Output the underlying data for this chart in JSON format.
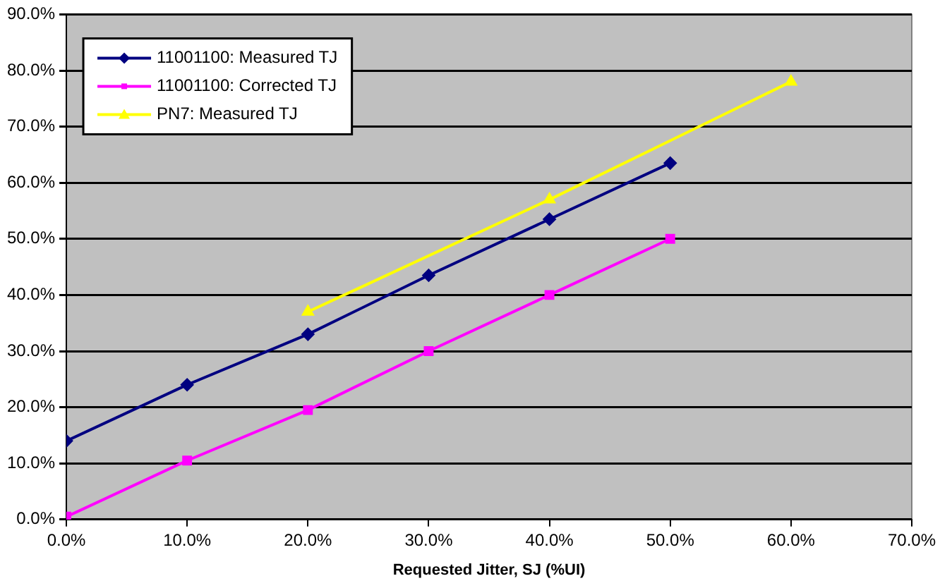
{
  "chart_data": {
    "type": "line",
    "xlabel": "Requested Jitter, SJ (%UI)",
    "xlim": [
      0,
      70
    ],
    "xticks": [
      {
        "value": 0,
        "label": "0.0%"
      },
      {
        "value": 10,
        "label": "10.0%"
      },
      {
        "value": 20,
        "label": "20.0%"
      },
      {
        "value": 30,
        "label": "30.0%"
      },
      {
        "value": 40,
        "label": "40.0%"
      },
      {
        "value": 50,
        "label": "50.0%"
      },
      {
        "value": 60,
        "label": "60.0%"
      },
      {
        "value": 70,
        "label": "70.0%"
      }
    ],
    "ylim": [
      0,
      90
    ],
    "yticks": [
      {
        "value": 0,
        "label": "0.0%"
      },
      {
        "value": 10,
        "label": "10.0%"
      },
      {
        "value": 20,
        "label": "20.0%"
      },
      {
        "value": 30,
        "label": "30.0%"
      },
      {
        "value": 40,
        "label": "40.0%"
      },
      {
        "value": 50,
        "label": "50.0%"
      },
      {
        "value": 60,
        "label": "60.0%"
      },
      {
        "value": 70,
        "label": "70.0%"
      },
      {
        "value": 80,
        "label": "80.0%"
      },
      {
        "value": 90,
        "label": "90.0%"
      }
    ],
    "grid": "y",
    "legend": "top left",
    "line_style": "solid",
    "series": [
      {
        "name": "11001100: Measured TJ",
        "color": "#000080",
        "marker": "diamond",
        "x": [
          0,
          10,
          20,
          30,
          40,
          50
        ],
        "values": [
          14,
          24,
          33,
          43.5,
          53.5,
          63.5
        ]
      },
      {
        "name": "11001100: Corrected TJ",
        "color": "#ff00ff",
        "marker": "square",
        "x": [
          0,
          10,
          20,
          30,
          40,
          50
        ],
        "values": [
          0.5,
          10.5,
          19.5,
          30,
          40,
          50
        ]
      },
      {
        "name": "PN7: Measured TJ",
        "color": "#ffff00",
        "marker": "triangle",
        "x": [
          20,
          40,
          60
        ],
        "values": [
          37,
          57,
          78
        ]
      }
    ]
  }
}
